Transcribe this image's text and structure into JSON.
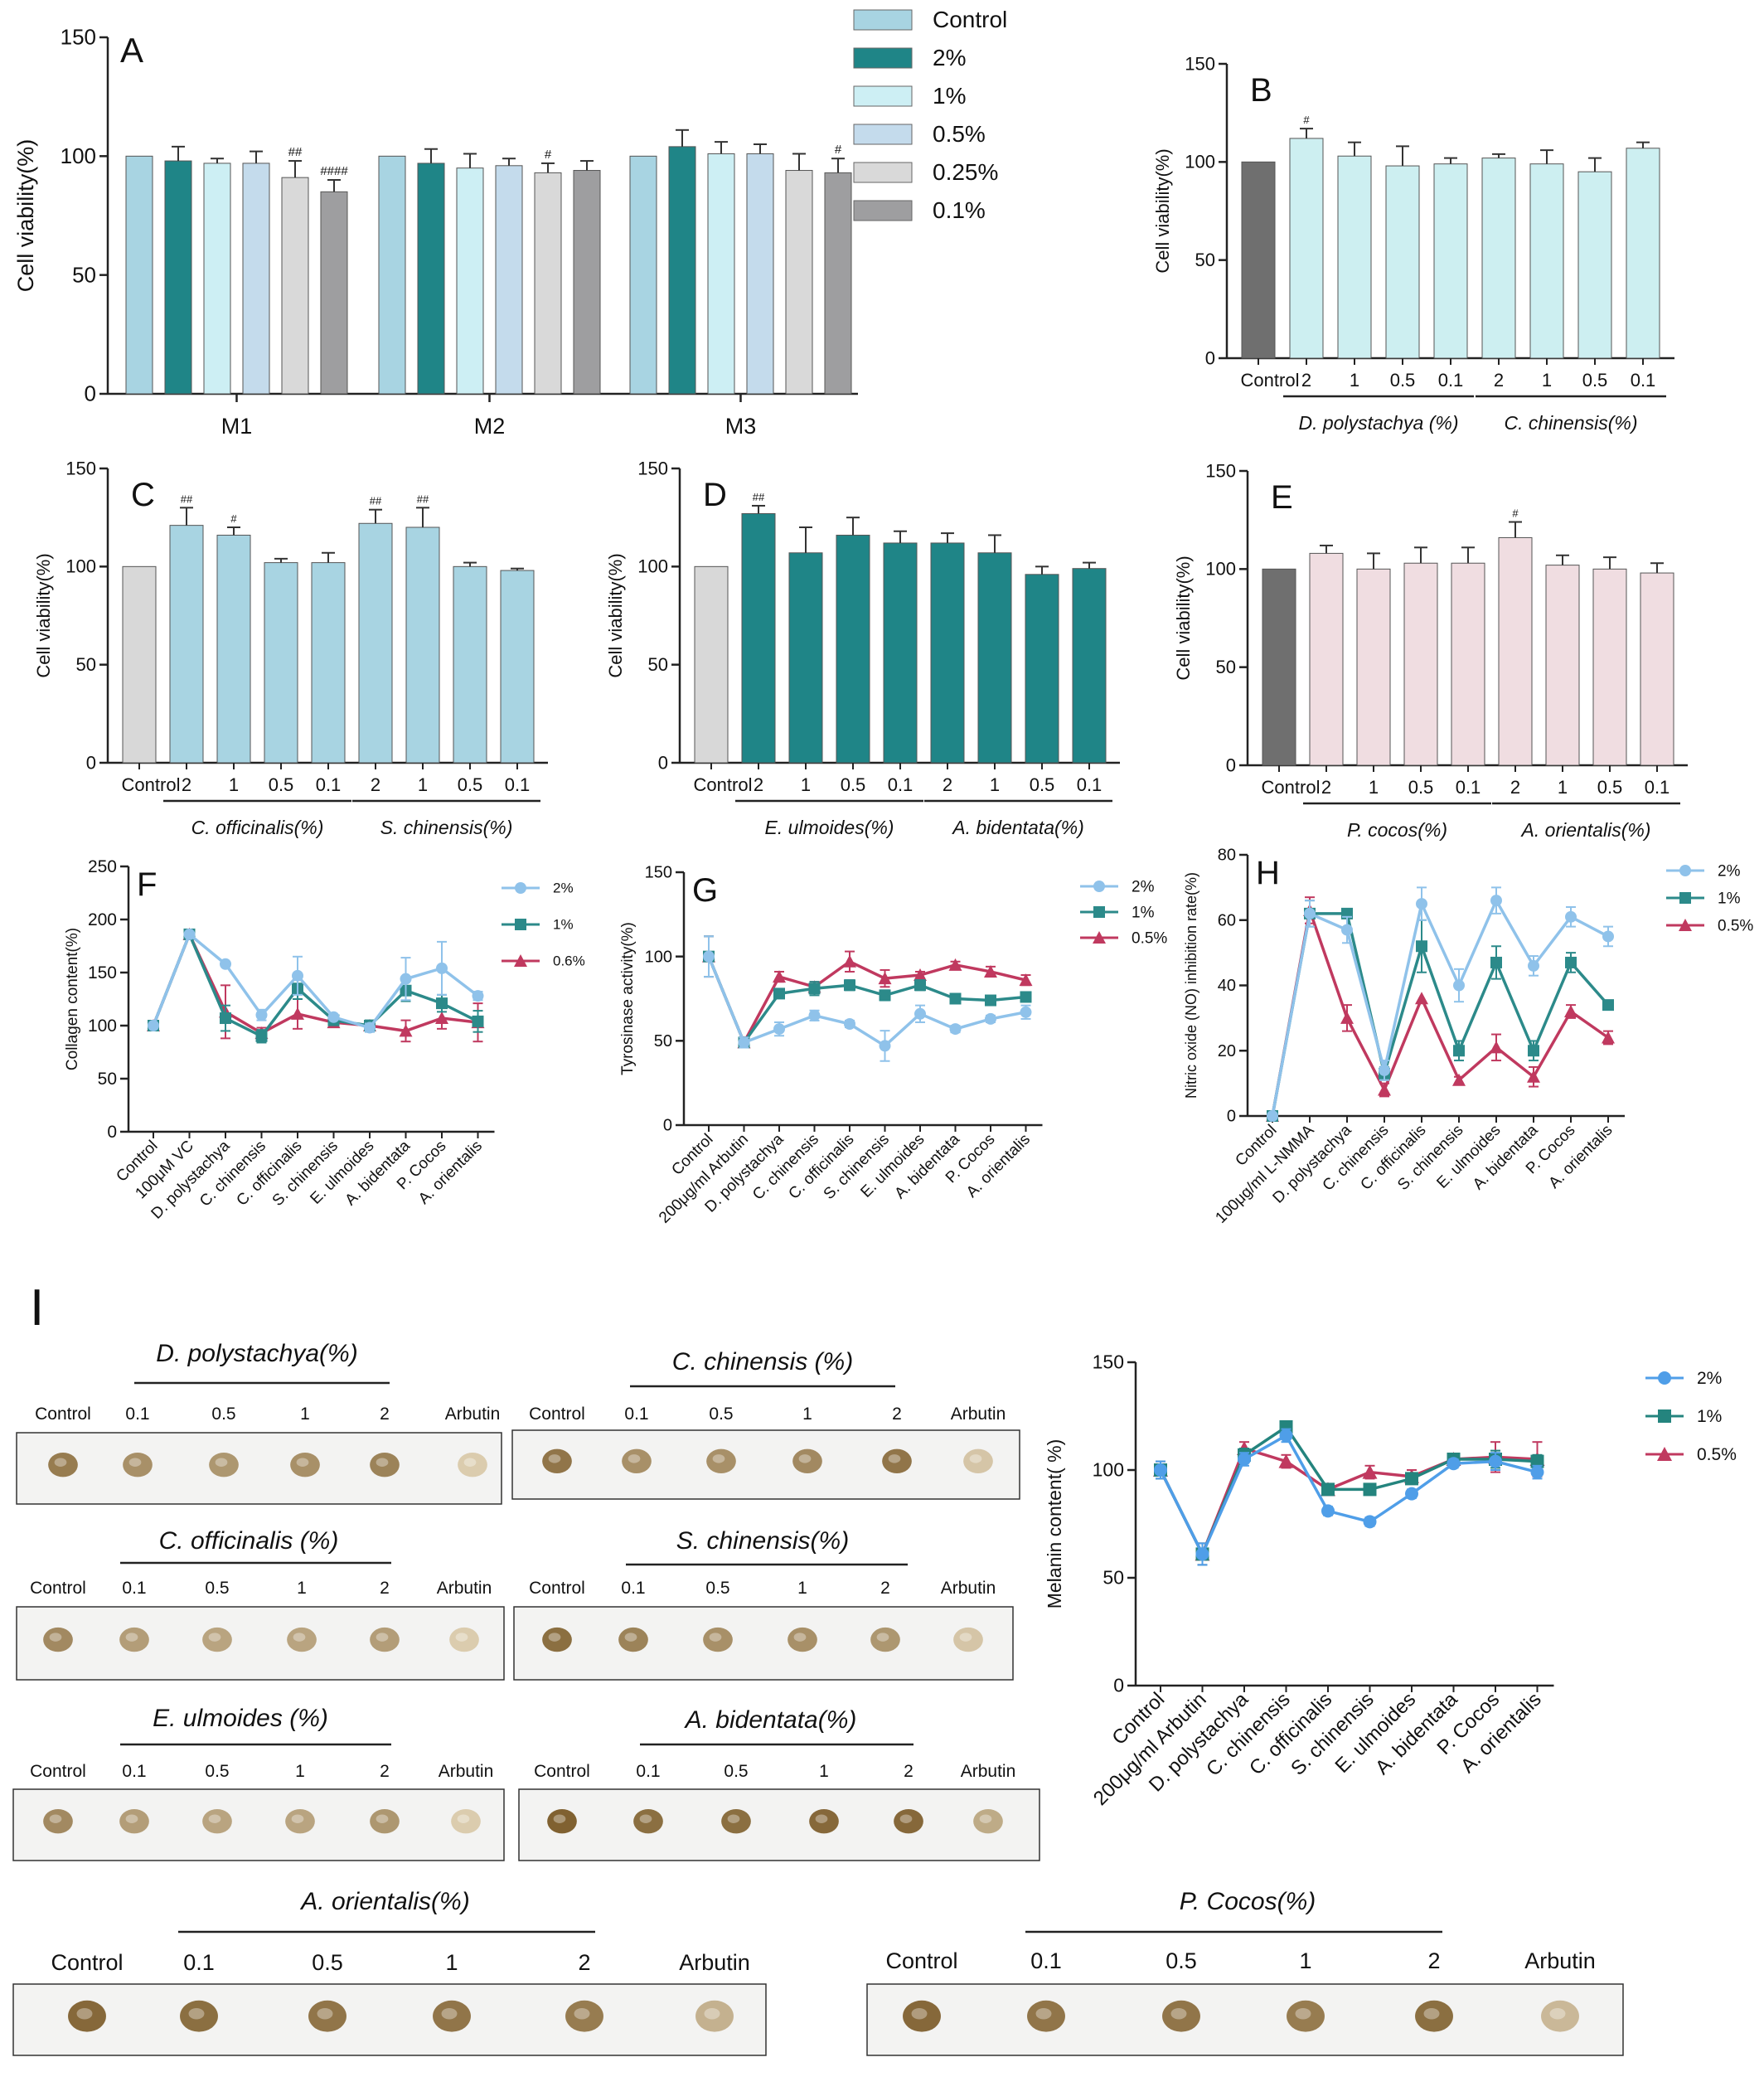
{
  "colors": {
    "control": "#a8d4e2",
    "c2": "#1f8587",
    "c1": "#cdeff4",
    "c05": "#c4dbec",
    "c025": "#d9d9d9",
    "c01": "#9e9ea0",
    "dark_control": "#6f6f6f",
    "light_control": "#d8d8d8",
    "b_bar": "#cdeff1",
    "c_bar": "#a8d4e2",
    "d_bar": "#1f8587",
    "e_bar": "#f0dde1",
    "line2": "#8fc2ea",
    "line1": "#2c8a8a",
    "line05": "#c0395f",
    "i_line2": "#4f9ee8",
    "i_line1": "#24847e",
    "i_line05": "#c0395f",
    "dot": "#8a6032"
  },
  "chart_data": [
    {
      "panel": "A",
      "type": "bar",
      "ylabel": "Cell viability(%)",
      "ylim": [
        0,
        150
      ],
      "yticks": [
        "0",
        "50",
        "100",
        "150"
      ],
      "groups": [
        "M1",
        "M2",
        "M3"
      ],
      "legend": [
        "Control",
        "2%",
        "1%",
        "0.5%",
        "0.25%",
        "0.1%"
      ],
      "values": [
        [
          100,
          98,
          97,
          97,
          91,
          85
        ],
        [
          100,
          97,
          95,
          96,
          93,
          94
        ],
        [
          100,
          104,
          101,
          101,
          94,
          93
        ]
      ],
      "errors": [
        [
          0,
          6,
          2,
          5,
          7,
          5
        ],
        [
          0,
          6,
          6,
          3,
          4,
          4
        ],
        [
          0,
          7,
          5,
          4,
          7,
          6
        ]
      ],
      "marks": [
        [
          "",
          "",
          "",
          "",
          "##",
          "####"
        ],
        [
          "",
          "",
          "",
          "",
          "#",
          ""
        ],
        [
          "",
          "",
          "",
          "",
          "",
          "#"
        ]
      ]
    },
    {
      "panel": "B",
      "type": "bar",
      "ylabel": "Cell viability(%)",
      "ylim": [
        0,
        150
      ],
      "yticks": [
        "0",
        "50",
        "100",
        "150"
      ],
      "categories": [
        "Control",
        "2",
        "1",
        "0.5",
        "0.1",
        "2",
        "1",
        "0.5",
        "0.1"
      ],
      "values": [
        100,
        112,
        103,
        98,
        99,
        102,
        99,
        95,
        107
      ],
      "errors": [
        0,
        5,
        7,
        10,
        3,
        2,
        7,
        7,
        3
      ],
      "marks": [
        "",
        "#",
        "",
        "",
        "",
        "",
        "",
        "",
        ""
      ],
      "group_labels": [
        "D. polystachya (%)",
        "C. chinensis(%)"
      ]
    },
    {
      "panel": "C",
      "type": "bar",
      "ylabel": "Cell viability(%)",
      "ylim": [
        0,
        150
      ],
      "yticks": [
        "0",
        "50",
        "100",
        "150"
      ],
      "categories": [
        "Control",
        "2",
        "1",
        "0.5",
        "0.1",
        "2",
        "1",
        "0.5",
        "0.1"
      ],
      "values": [
        100,
        121,
        116,
        102,
        102,
        122,
        120,
        100,
        98
      ],
      "errors": [
        0,
        9,
        4,
        2,
        5,
        7,
        10,
        2,
        1
      ],
      "marks": [
        "",
        "##",
        "#",
        "",
        "",
        "##",
        "##",
        "",
        ""
      ],
      "group_labels": [
        "C. officinalis(%)",
        "S. chinensis(%)"
      ]
    },
    {
      "panel": "D",
      "type": "bar",
      "ylabel": "Cell viability(%)",
      "ylim": [
        0,
        150
      ],
      "yticks": [
        "0",
        "50",
        "100",
        "150"
      ],
      "categories": [
        "Control",
        "2",
        "1",
        "0.5",
        "0.1",
        "2",
        "1",
        "0.5",
        "0.1"
      ],
      "values": [
        100,
        127,
        107,
        116,
        112,
        112,
        107,
        96,
        99
      ],
      "errors": [
        0,
        4,
        13,
        9,
        6,
        5,
        9,
        4,
        3
      ],
      "marks": [
        "",
        "##",
        "",
        "",
        "",
        "",
        "",
        "",
        ""
      ],
      "group_labels": [
        "E. ulmoides(%)",
        "A. bidentata(%)"
      ]
    },
    {
      "panel": "E",
      "type": "bar",
      "ylabel": "Cell viability(%)",
      "ylim": [
        0,
        150
      ],
      "yticks": [
        "0",
        "50",
        "100",
        "150"
      ],
      "categories": [
        "Control",
        "2",
        "1",
        "0.5",
        "0.1",
        "2",
        "1",
        "0.5",
        "0.1"
      ],
      "values": [
        100,
        108,
        100,
        103,
        103,
        116,
        102,
        100,
        98
      ],
      "errors": [
        0,
        4,
        8,
        8,
        8,
        8,
        5,
        6,
        5
      ],
      "marks": [
        "",
        "",
        "",
        "",
        "",
        "#",
        "",
        "",
        ""
      ],
      "group_labels": [
        "P. cocos(%)",
        "A. orientalis(%)"
      ]
    },
    {
      "panel": "F",
      "type": "line",
      "ylabel": "Collagen content(%)",
      "ylim": [
        0,
        250
      ],
      "yticks": [
        "0",
        "50",
        "100",
        "150",
        "200",
        "250"
      ],
      "categories": [
        "Control",
        "100μM VC",
        "D. polystachya",
        "C. chinensis",
        "C. officinalis",
        "S. chinensis",
        "E. ulmoides",
        "A. bidentata",
        "P. Cocos",
        "A. orientalis"
      ],
      "series": [
        {
          "name": "2%",
          "values": [
            100,
            186,
            158,
            110,
            147,
            108,
            98,
            144,
            154,
            128
          ],
          "errors": [
            0,
            0,
            0,
            5,
            18,
            0,
            4,
            20,
            25,
            4
          ]
        },
        {
          "name": "1%",
          "values": [
            100,
            186,
            107,
            90,
            135,
            105,
            100,
            133,
            121,
            104
          ],
          "errors": [
            0,
            0,
            12,
            6,
            10,
            4,
            5,
            10,
            8,
            10
          ]
        },
        {
          "name": "0.6%",
          "values": [
            100,
            186,
            113,
            93,
            111,
            103,
            100,
            95,
            107,
            103
          ],
          "errors": [
            0,
            0,
            25,
            5,
            14,
            4,
            4,
            10,
            10,
            18
          ]
        }
      ]
    },
    {
      "panel": "G",
      "type": "line",
      "ylabel": "Tyrosinase activity(%)",
      "ylim": [
        0,
        150
      ],
      "yticks": [
        "0",
        "50",
        "100",
        "150"
      ],
      "categories": [
        "Control",
        "200μg/ml Arbutin",
        "D. polystachya",
        "C. chinensis",
        "C. officinalis",
        "S. chinensis",
        "E. ulmoides",
        "A. bidentata",
        "P. Cocos",
        "A. orientalis"
      ],
      "series": [
        {
          "name": "2%",
          "values": [
            100,
            49,
            57,
            65,
            60,
            47,
            66,
            57,
            63,
            67
          ],
          "errors": [
            12,
            3,
            4,
            3,
            2,
            9,
            5,
            2,
            2,
            4
          ]
        },
        {
          "name": "1%",
          "values": [
            100,
            49,
            78,
            81,
            83,
            77,
            83,
            75,
            74,
            76
          ],
          "errors": [
            12,
            3,
            2,
            4,
            3,
            3,
            3,
            2,
            2,
            2
          ]
        },
        {
          "name": "0.5%",
          "values": [
            100,
            49,
            88,
            82,
            97,
            87,
            89,
            95,
            91,
            86
          ],
          "errors": [
            12,
            3,
            3,
            3,
            6,
            5,
            2,
            2,
            3,
            3
          ]
        }
      ]
    },
    {
      "panel": "H",
      "type": "line",
      "ylabel": "Nitric oxide (NO) inhibition rate(%)",
      "ylim": [
        0,
        80
      ],
      "yticks": [
        "0",
        "20",
        "40",
        "60",
        "80"
      ],
      "categories": [
        "Control",
        "100μg/ml L-NMMA",
        "D. polystachya",
        "C. chinensis",
        "C. officinalis",
        "S. chinensis",
        "E. ulmoides",
        "A. bidentata",
        "P. Cocos",
        "A. orientalis"
      ],
      "series": [
        {
          "name": "2%",
          "values": [
            0,
            62,
            57,
            14,
            65,
            40,
            66,
            46,
            61,
            55
          ],
          "errors": [
            0,
            4,
            4,
            3,
            5,
            5,
            4,
            3,
            3,
            3
          ]
        },
        {
          "name": "1%",
          "values": [
            0,
            62,
            62,
            13,
            52,
            20,
            47,
            20,
            47,
            34
          ],
          "errors": [
            0,
            4,
            0,
            2,
            8,
            3,
            5,
            3,
            3,
            1
          ]
        },
        {
          "name": "0.5%",
          "values": [
            0,
            63,
            30,
            8,
            36,
            11,
            21,
            12,
            32,
            24
          ],
          "errors": [
            0,
            4,
            4,
            2,
            0,
            1,
            4,
            3,
            2,
            2
          ]
        }
      ]
    },
    {
      "panel": "I",
      "type": "line",
      "ylabel": "Melanin content( %)",
      "ylim": [
        0,
        150
      ],
      "yticks": [
        "0",
        "50",
        "100",
        "150"
      ],
      "categories": [
        "Control",
        "200μg/ml Arbutin",
        "D. polystachya",
        "C. chinensis",
        "C. officinalis",
        "S. chinensis",
        "E. ulmoides",
        "A. bidentata",
        "P. Cocos",
        "A. orientalis"
      ],
      "series": [
        {
          "name": "2%",
          "values": [
            100,
            61,
            105,
            116,
            81,
            76,
            89,
            103,
            104,
            99
          ],
          "errors": [
            4,
            5,
            3,
            3,
            2,
            2,
            2,
            2,
            4,
            3
          ]
        },
        {
          "name": "1%",
          "values": [
            100,
            61,
            107,
            120,
            91,
            91,
            96,
            105,
            105,
            104
          ],
          "errors": [
            4,
            5,
            3,
            2,
            2,
            2,
            2,
            2,
            4,
            3
          ]
        },
        {
          "name": "0.5%",
          "values": [
            100,
            61,
            110,
            104,
            91,
            99,
            97,
            105,
            106,
            105
          ],
          "errors": [
            4,
            5,
            3,
            3,
            2,
            3,
            3,
            2,
            7,
            8
          ]
        }
      ]
    }
  ],
  "melanin_plates": {
    "panel_label": "I",
    "plates": [
      {
        "title": "D. polystachya(%)",
        "labels": [
          "Control",
          "0.1",
          "0.5",
          "1",
          "2",
          "Arbutin"
        ]
      },
      {
        "title": "C. chinensis (%)",
        "labels": [
          "Control",
          "0.1",
          "0.5",
          "1",
          "2",
          "Arbutin"
        ]
      },
      {
        "title": "C. officinalis (%)",
        "labels": [
          "Control",
          "0.1",
          "0.5",
          "1",
          "2",
          "Arbutin"
        ]
      },
      {
        "title": "S. chinensis(%)",
        "labels": [
          "Control",
          "0.1",
          "0.5",
          "1",
          "2",
          "Arbutin"
        ]
      },
      {
        "title": "E. ulmoides (%)",
        "labels": [
          "Control",
          "0.1",
          "0.5",
          "1",
          "2",
          "Arbutin"
        ]
      },
      {
        "title": "A. bidentata(%)",
        "labels": [
          "Control",
          "0.1",
          "0.5",
          "1",
          "2",
          "Arbutin"
        ]
      },
      {
        "title": "A. orientalis(%)",
        "labels": [
          "Control",
          "0.1",
          "0.5",
          "1",
          "2",
          "Arbutin"
        ]
      },
      {
        "title": "P. Cocos(%)",
        "labels": [
          "Control",
          "0.1",
          "0.5",
          "1",
          "2",
          "Arbutin"
        ]
      }
    ],
    "intensity": [
      [
        0.75,
        0.6,
        0.55,
        0.6,
        0.7,
        0.15
      ],
      [
        0.8,
        0.6,
        0.6,
        0.65,
        0.8,
        0.2
      ],
      [
        0.65,
        0.5,
        0.45,
        0.45,
        0.5,
        0.15
      ],
      [
        0.85,
        0.7,
        0.6,
        0.6,
        0.55,
        0.2
      ],
      [
        0.65,
        0.5,
        0.45,
        0.45,
        0.55,
        0.15
      ],
      [
        0.95,
        0.85,
        0.85,
        0.9,
        0.9,
        0.4
      ],
      [
        0.9,
        0.85,
        0.8,
        0.8,
        0.75,
        0.35
      ],
      [
        0.9,
        0.8,
        0.8,
        0.75,
        0.85,
        0.3
      ]
    ]
  }
}
